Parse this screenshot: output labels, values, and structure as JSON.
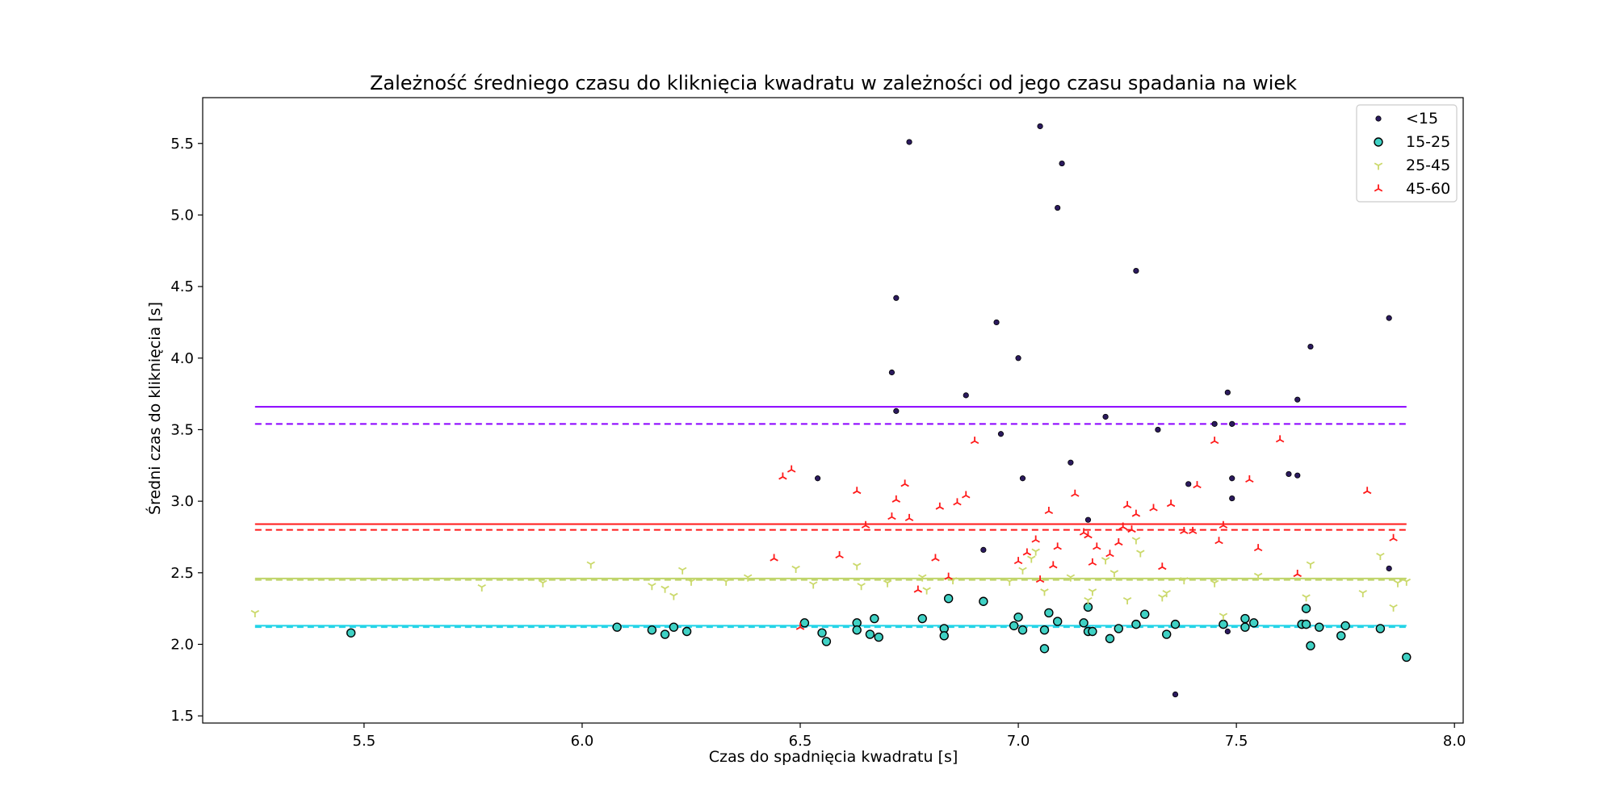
{
  "chart_data": {
    "type": "scatter",
    "title": "Zależność średniego czasu do kliknięcia kwadratu w zależności od jego czasu spadania na wiek",
    "xlabel": "Czas do spadnięcia kwadratu [s]",
    "ylabel": "Średni czas do kliknięcia [s]",
    "xlim": [
      5.13,
      8.02
    ],
    "ylim": [
      1.45,
      5.82
    ],
    "xticks": [
      5.5,
      6.0,
      6.5,
      7.0,
      7.5,
      8.0
    ],
    "xtick_labels": [
      "5.5",
      "6.0",
      "6.5",
      "7.0",
      "7.5",
      "8.0"
    ],
    "yticks": [
      1.5,
      2.0,
      2.5,
      3.0,
      3.5,
      4.0,
      4.5,
      5.0,
      5.5
    ],
    "ytick_labels": [
      "1.5",
      "2.0",
      "2.5",
      "3.0",
      "3.5",
      "4.0",
      "4.5",
      "5.0",
      "5.5"
    ],
    "grid": false,
    "legend_position": "top-right",
    "series": [
      {
        "name": "<15",
        "marker": "dot",
        "color": "#2b1a5e",
        "edge": "#2b1a5e",
        "mean": 3.66,
        "median": 3.54,
        "line_color": "#8a00ff",
        "points": [
          [
            6.75,
            5.51
          ],
          [
            7.05,
            5.62
          ],
          [
            7.1,
            5.36
          ],
          [
            7.09,
            5.05
          ],
          [
            7.27,
            4.61
          ],
          [
            6.72,
            4.42
          ],
          [
            6.95,
            4.25
          ],
          [
            7.85,
            4.28
          ],
          [
            7.67,
            4.08
          ],
          [
            7.0,
            4.0
          ],
          [
            6.71,
            3.9
          ],
          [
            6.88,
            3.74
          ],
          [
            7.48,
            3.76
          ],
          [
            7.64,
            3.71
          ],
          [
            6.72,
            3.63
          ],
          [
            7.2,
            3.59
          ],
          [
            7.45,
            3.54
          ],
          [
            7.49,
            3.54
          ],
          [
            6.96,
            3.47
          ],
          [
            7.32,
            3.5
          ],
          [
            7.12,
            3.27
          ],
          [
            6.54,
            3.16
          ],
          [
            7.01,
            3.16
          ],
          [
            7.49,
            3.16
          ],
          [
            7.62,
            3.19
          ],
          [
            7.64,
            3.18
          ],
          [
            7.39,
            3.12
          ],
          [
            7.49,
            3.02
          ],
          [
            7.16,
            2.87
          ],
          [
            6.92,
            2.66
          ],
          [
            7.85,
            2.53
          ],
          [
            7.48,
            2.09
          ],
          [
            7.36,
            1.65
          ]
        ]
      },
      {
        "name": "15-25",
        "marker": "circle",
        "color": "#3fd1c4",
        "edge": "#000000",
        "mean": 2.13,
        "median": 2.12,
        "line_color": "#1fd3e6",
        "points": [
          [
            5.47,
            2.08
          ],
          [
            6.08,
            2.12
          ],
          [
            6.16,
            2.1
          ],
          [
            6.19,
            2.07
          ],
          [
            6.21,
            2.12
          ],
          [
            6.24,
            2.09
          ],
          [
            6.51,
            2.15
          ],
          [
            6.55,
            2.08
          ],
          [
            6.56,
            2.02
          ],
          [
            6.63,
            2.15
          ],
          [
            6.63,
            2.1
          ],
          [
            6.66,
            2.07
          ],
          [
            6.67,
            2.18
          ],
          [
            6.68,
            2.05
          ],
          [
            6.78,
            2.18
          ],
          [
            6.83,
            2.11
          ],
          [
            6.83,
            2.06
          ],
          [
            6.84,
            2.32
          ],
          [
            6.92,
            2.3
          ],
          [
            6.99,
            2.13
          ],
          [
            7.0,
            2.19
          ],
          [
            7.01,
            2.1
          ],
          [
            7.07,
            2.22
          ],
          [
            7.06,
            2.1
          ],
          [
            7.06,
            1.97
          ],
          [
            7.09,
            2.16
          ],
          [
            7.15,
            2.15
          ],
          [
            7.16,
            2.26
          ],
          [
            7.16,
            2.09
          ],
          [
            7.17,
            2.09
          ],
          [
            7.21,
            2.04
          ],
          [
            7.23,
            2.11
          ],
          [
            7.27,
            2.14
          ],
          [
            7.29,
            2.21
          ],
          [
            7.34,
            2.07
          ],
          [
            7.36,
            2.14
          ],
          [
            7.47,
            2.14
          ],
          [
            7.52,
            2.18
          ],
          [
            7.52,
            2.12
          ],
          [
            7.54,
            2.15
          ],
          [
            7.65,
            2.14
          ],
          [
            7.66,
            2.25
          ],
          [
            7.66,
            2.14
          ],
          [
            7.67,
            1.99
          ],
          [
            7.69,
            2.12
          ],
          [
            7.74,
            2.06
          ],
          [
            7.75,
            2.13
          ],
          [
            7.83,
            2.11
          ],
          [
            7.89,
            1.91
          ]
        ]
      },
      {
        "name": "25-45",
        "marker": "tri-down",
        "color": "#cbd96b",
        "edge": "#cbd96b",
        "mean": 2.46,
        "median": 2.45,
        "line_color": "#bfd46a",
        "points": [
          [
            5.25,
            2.22
          ],
          [
            5.77,
            2.4
          ],
          [
            5.91,
            2.43
          ],
          [
            6.02,
            2.56
          ],
          [
            6.16,
            2.41
          ],
          [
            6.19,
            2.39
          ],
          [
            6.21,
            2.34
          ],
          [
            6.23,
            2.52
          ],
          [
            6.25,
            2.44
          ],
          [
            6.33,
            2.44
          ],
          [
            6.38,
            2.47
          ],
          [
            6.49,
            2.53
          ],
          [
            6.53,
            2.42
          ],
          [
            6.63,
            2.55
          ],
          [
            6.64,
            2.41
          ],
          [
            6.7,
            2.43
          ],
          [
            6.78,
            2.47
          ],
          [
            6.79,
            2.38
          ],
          [
            6.85,
            2.45
          ],
          [
            6.98,
            2.44
          ],
          [
            7.01,
            2.52
          ],
          [
            7.03,
            2.6
          ],
          [
            7.04,
            2.65
          ],
          [
            7.06,
            2.37
          ],
          [
            7.12,
            2.47
          ],
          [
            7.16,
            2.31
          ],
          [
            7.17,
            2.37
          ],
          [
            7.2,
            2.59
          ],
          [
            7.22,
            2.5
          ],
          [
            7.25,
            2.31
          ],
          [
            7.27,
            2.73
          ],
          [
            7.28,
            2.64
          ],
          [
            7.33,
            2.33
          ],
          [
            7.34,
            2.36
          ],
          [
            7.38,
            2.45
          ],
          [
            7.45,
            2.43
          ],
          [
            7.47,
            2.2
          ],
          [
            7.55,
            2.48
          ],
          [
            7.66,
            2.33
          ],
          [
            7.67,
            2.56
          ],
          [
            7.79,
            2.36
          ],
          [
            7.83,
            2.62
          ],
          [
            7.86,
            2.26
          ],
          [
            7.87,
            2.43
          ],
          [
            7.89,
            2.44
          ]
        ]
      },
      {
        "name": "45-60",
        "marker": "tri-up",
        "color": "#ff1a1a",
        "edge": "#ff1a1a",
        "mean": 2.84,
        "median": 2.8,
        "line_color": "#ff1a1a",
        "points": [
          [
            6.44,
            2.6
          ],
          [
            6.46,
            3.17
          ],
          [
            6.48,
            3.22
          ],
          [
            6.5,
            2.12
          ],
          [
            6.59,
            2.62
          ],
          [
            6.63,
            3.07
          ],
          [
            6.65,
            2.83
          ],
          [
            6.71,
            2.89
          ],
          [
            6.72,
            3.01
          ],
          [
            6.74,
            3.12
          ],
          [
            6.75,
            2.88
          ],
          [
            6.77,
            2.38
          ],
          [
            6.81,
            2.6
          ],
          [
            6.82,
            2.96
          ],
          [
            6.84,
            2.47
          ],
          [
            6.86,
            2.99
          ],
          [
            6.88,
            3.04
          ],
          [
            6.9,
            3.42
          ],
          [
            7.0,
            2.58
          ],
          [
            7.02,
            2.64
          ],
          [
            7.04,
            2.73
          ],
          [
            7.05,
            2.45
          ],
          [
            7.07,
            2.93
          ],
          [
            7.08,
            2.55
          ],
          [
            7.09,
            2.68
          ],
          [
            7.13,
            3.05
          ],
          [
            7.15,
            2.78
          ],
          [
            7.16,
            2.76
          ],
          [
            7.17,
            2.57
          ],
          [
            7.18,
            2.68
          ],
          [
            7.21,
            2.63
          ],
          [
            7.23,
            2.71
          ],
          [
            7.24,
            2.82
          ],
          [
            7.25,
            2.97
          ],
          [
            7.26,
            2.8
          ],
          [
            7.27,
            2.91
          ],
          [
            7.31,
            2.95
          ],
          [
            7.33,
            2.54
          ],
          [
            7.35,
            2.98
          ],
          [
            7.38,
            2.79
          ],
          [
            7.4,
            2.79
          ],
          [
            7.41,
            3.11
          ],
          [
            7.45,
            3.42
          ],
          [
            7.46,
            2.72
          ],
          [
            7.47,
            2.83
          ],
          [
            7.53,
            3.15
          ],
          [
            7.55,
            2.67
          ],
          [
            7.6,
            3.43
          ],
          [
            7.64,
            2.49
          ],
          [
            7.8,
            3.07
          ],
          [
            7.86,
            2.74
          ]
        ]
      }
    ]
  }
}
